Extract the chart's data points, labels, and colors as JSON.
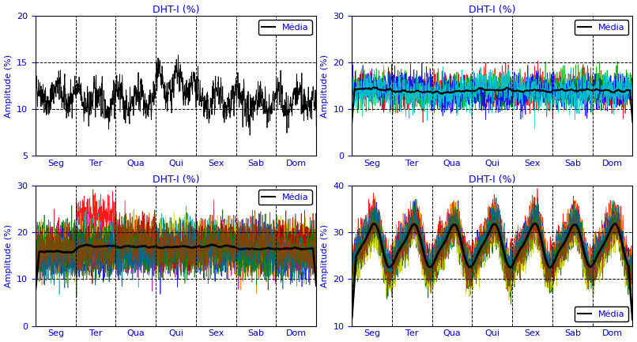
{
  "title": "DHT-I (%)",
  "ylabel": "Amplitude (%)",
  "days": [
    "Seg",
    "Ter",
    "Qua",
    "Qui",
    "Sex",
    "Sab",
    "Dom"
  ],
  "n_points": 2016,
  "subplot1": {
    "ylim": [
      5,
      20
    ],
    "yticks": [
      5,
      10,
      15,
      20
    ],
    "mean_level": 11.0,
    "noise": 1.6,
    "color": "#000000"
  },
  "subplot2": {
    "ylim": [
      0,
      30
    ],
    "yticks": [
      0,
      10,
      20,
      30
    ],
    "mean_level": 14.0,
    "noise": 2.5,
    "colors": [
      "#000000",
      "#ff0000",
      "#00aa00",
      "#0000ff",
      "#00cccc"
    ]
  },
  "subplot3": {
    "ylim": [
      0,
      30
    ],
    "yticks": [
      0,
      10,
      20,
      30
    ],
    "mean_level": 16.0,
    "noise": 3.0,
    "colors": [
      "#000000",
      "#ff0000",
      "#006600",
      "#0000ff",
      "#00bbbb",
      "#cc00cc",
      "#cccc00",
      "#555555",
      "#ff8800",
      "#aa0000",
      "#008800",
      "#006688",
      "#884400"
    ]
  },
  "subplot4": {
    "ylim": [
      10,
      40
    ],
    "yticks": [
      10,
      20,
      30,
      40
    ],
    "mean_level": 27.0,
    "noise": 2.5,
    "pattern_amp": 4.5,
    "colors": [
      "#000000",
      "#ff0000",
      "#006600",
      "#0000ff",
      "#00bbbb",
      "#cc00cc",
      "#cccc00",
      "#555555",
      "#ff8800",
      "#aa0000",
      "#008800",
      "#006688",
      "#884400"
    ]
  },
  "bg_color": "#ffffff",
  "title_color": "#0000cc",
  "label_color": "#0000cc",
  "tick_color": "#0000cc",
  "legend_label": "Média"
}
